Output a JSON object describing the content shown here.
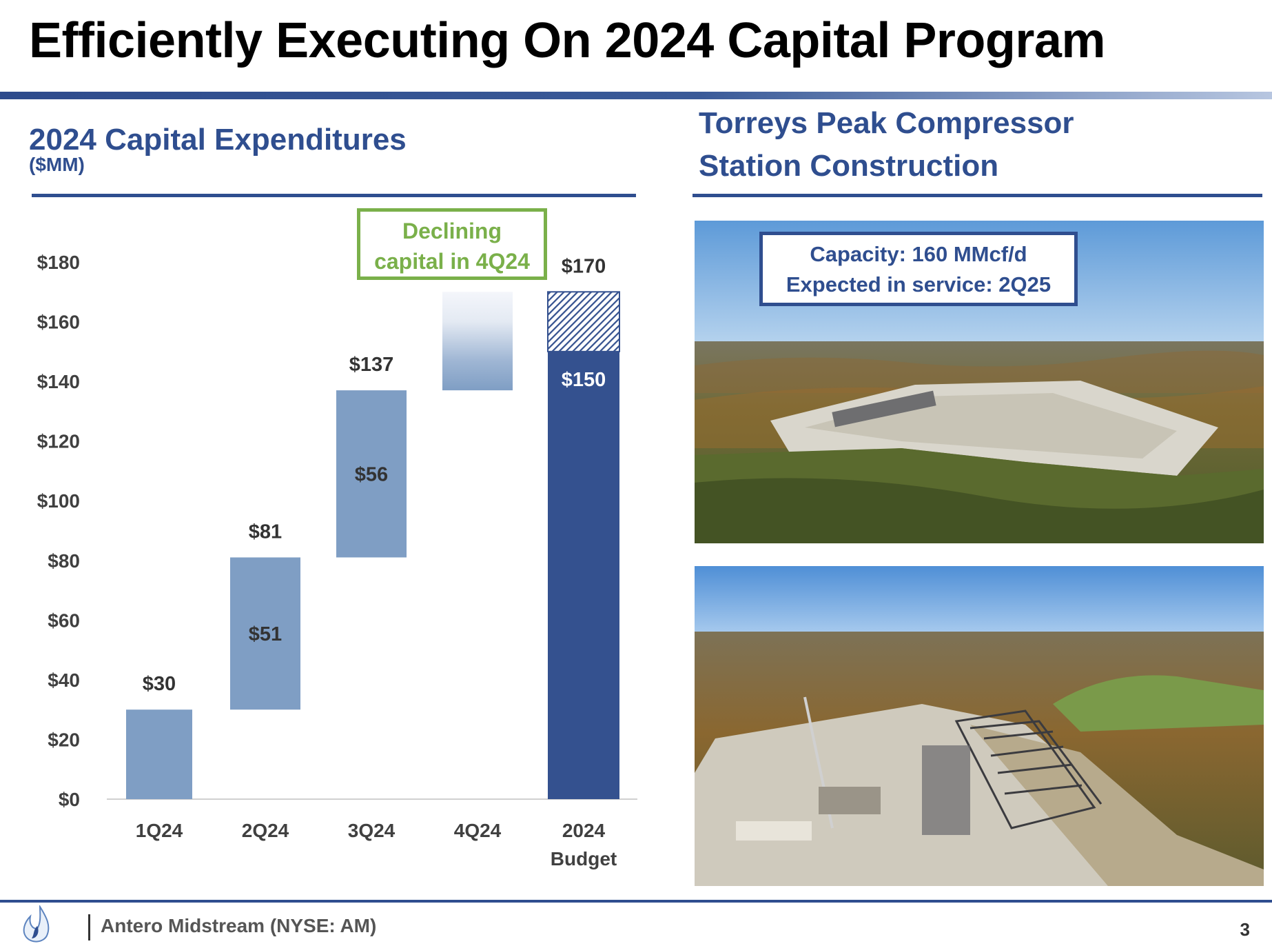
{
  "title": "Efficiently Executing On 2024 Capital Program",
  "left_panel": {
    "title": "2024 Capital Expenditures",
    "unit": "($MM)",
    "callout_line1": "Declining",
    "callout_line2": "capital in 4Q24"
  },
  "right_panel": {
    "title_line1": "Torreys Peak Compressor",
    "title_line2": "Station Construction",
    "callout_line1": "Capacity: 160 MMcf/d",
    "callout_line2": "Expected in service: 2Q25",
    "photos": [
      "aerial-site-photo",
      "aerial-construction-photo"
    ]
  },
  "chart_data": {
    "type": "bar",
    "subtype": "waterfall",
    "title": "2024 Capital Expenditures",
    "ylabel": "($MM)",
    "ylim": [
      0,
      180
    ],
    "yticks": [
      "$0",
      "$20",
      "$40",
      "$60",
      "$80",
      "$100",
      "$120",
      "$140",
      "$160",
      "$180"
    ],
    "ytick_values": [
      0,
      20,
      40,
      60,
      80,
      100,
      120,
      140,
      160,
      180
    ],
    "grid": false,
    "categories": [
      {
        "label1": "1Q24",
        "label2": ""
      },
      {
        "label1": "2Q24",
        "label2": ""
      },
      {
        "label1": "3Q24",
        "label2": ""
      },
      {
        "label1": "4Q24",
        "label2": ""
      },
      {
        "label1": "2024",
        "label2": "Budget"
      }
    ],
    "bars": [
      {
        "category": "1Q24",
        "base": 0,
        "top": 30,
        "style": "increment",
        "top_label": "$30",
        "inner_label": ""
      },
      {
        "category": "2Q24",
        "base": 30,
        "top": 81,
        "style": "increment",
        "top_label": "$81",
        "inner_label": "$51"
      },
      {
        "category": "3Q24",
        "base": 81,
        "top": 137,
        "style": "increment",
        "top_label": "$137",
        "inner_label": "$56"
      },
      {
        "category": "4Q24",
        "base": 137,
        "top": 170,
        "style": "faded",
        "top_label": "",
        "inner_label": ""
      },
      {
        "category": "2024 Budget",
        "base": 0,
        "top": 150,
        "style": "total",
        "top_label": "",
        "inner_label": "$150"
      },
      {
        "category": "2024 Budget",
        "base": 150,
        "top": 170,
        "style": "hatched",
        "top_label": "$170",
        "inner_label": ""
      }
    ],
    "colors": {
      "increment": "#7f9ec4",
      "total": "#34518f",
      "hatch": "#34518f",
      "faded_top": "#f4f6fb",
      "faded_bottom": "#7f9ec4"
    }
  },
  "footer": {
    "company": "Antero Midstream (NYSE: AM)",
    "page": "3"
  }
}
